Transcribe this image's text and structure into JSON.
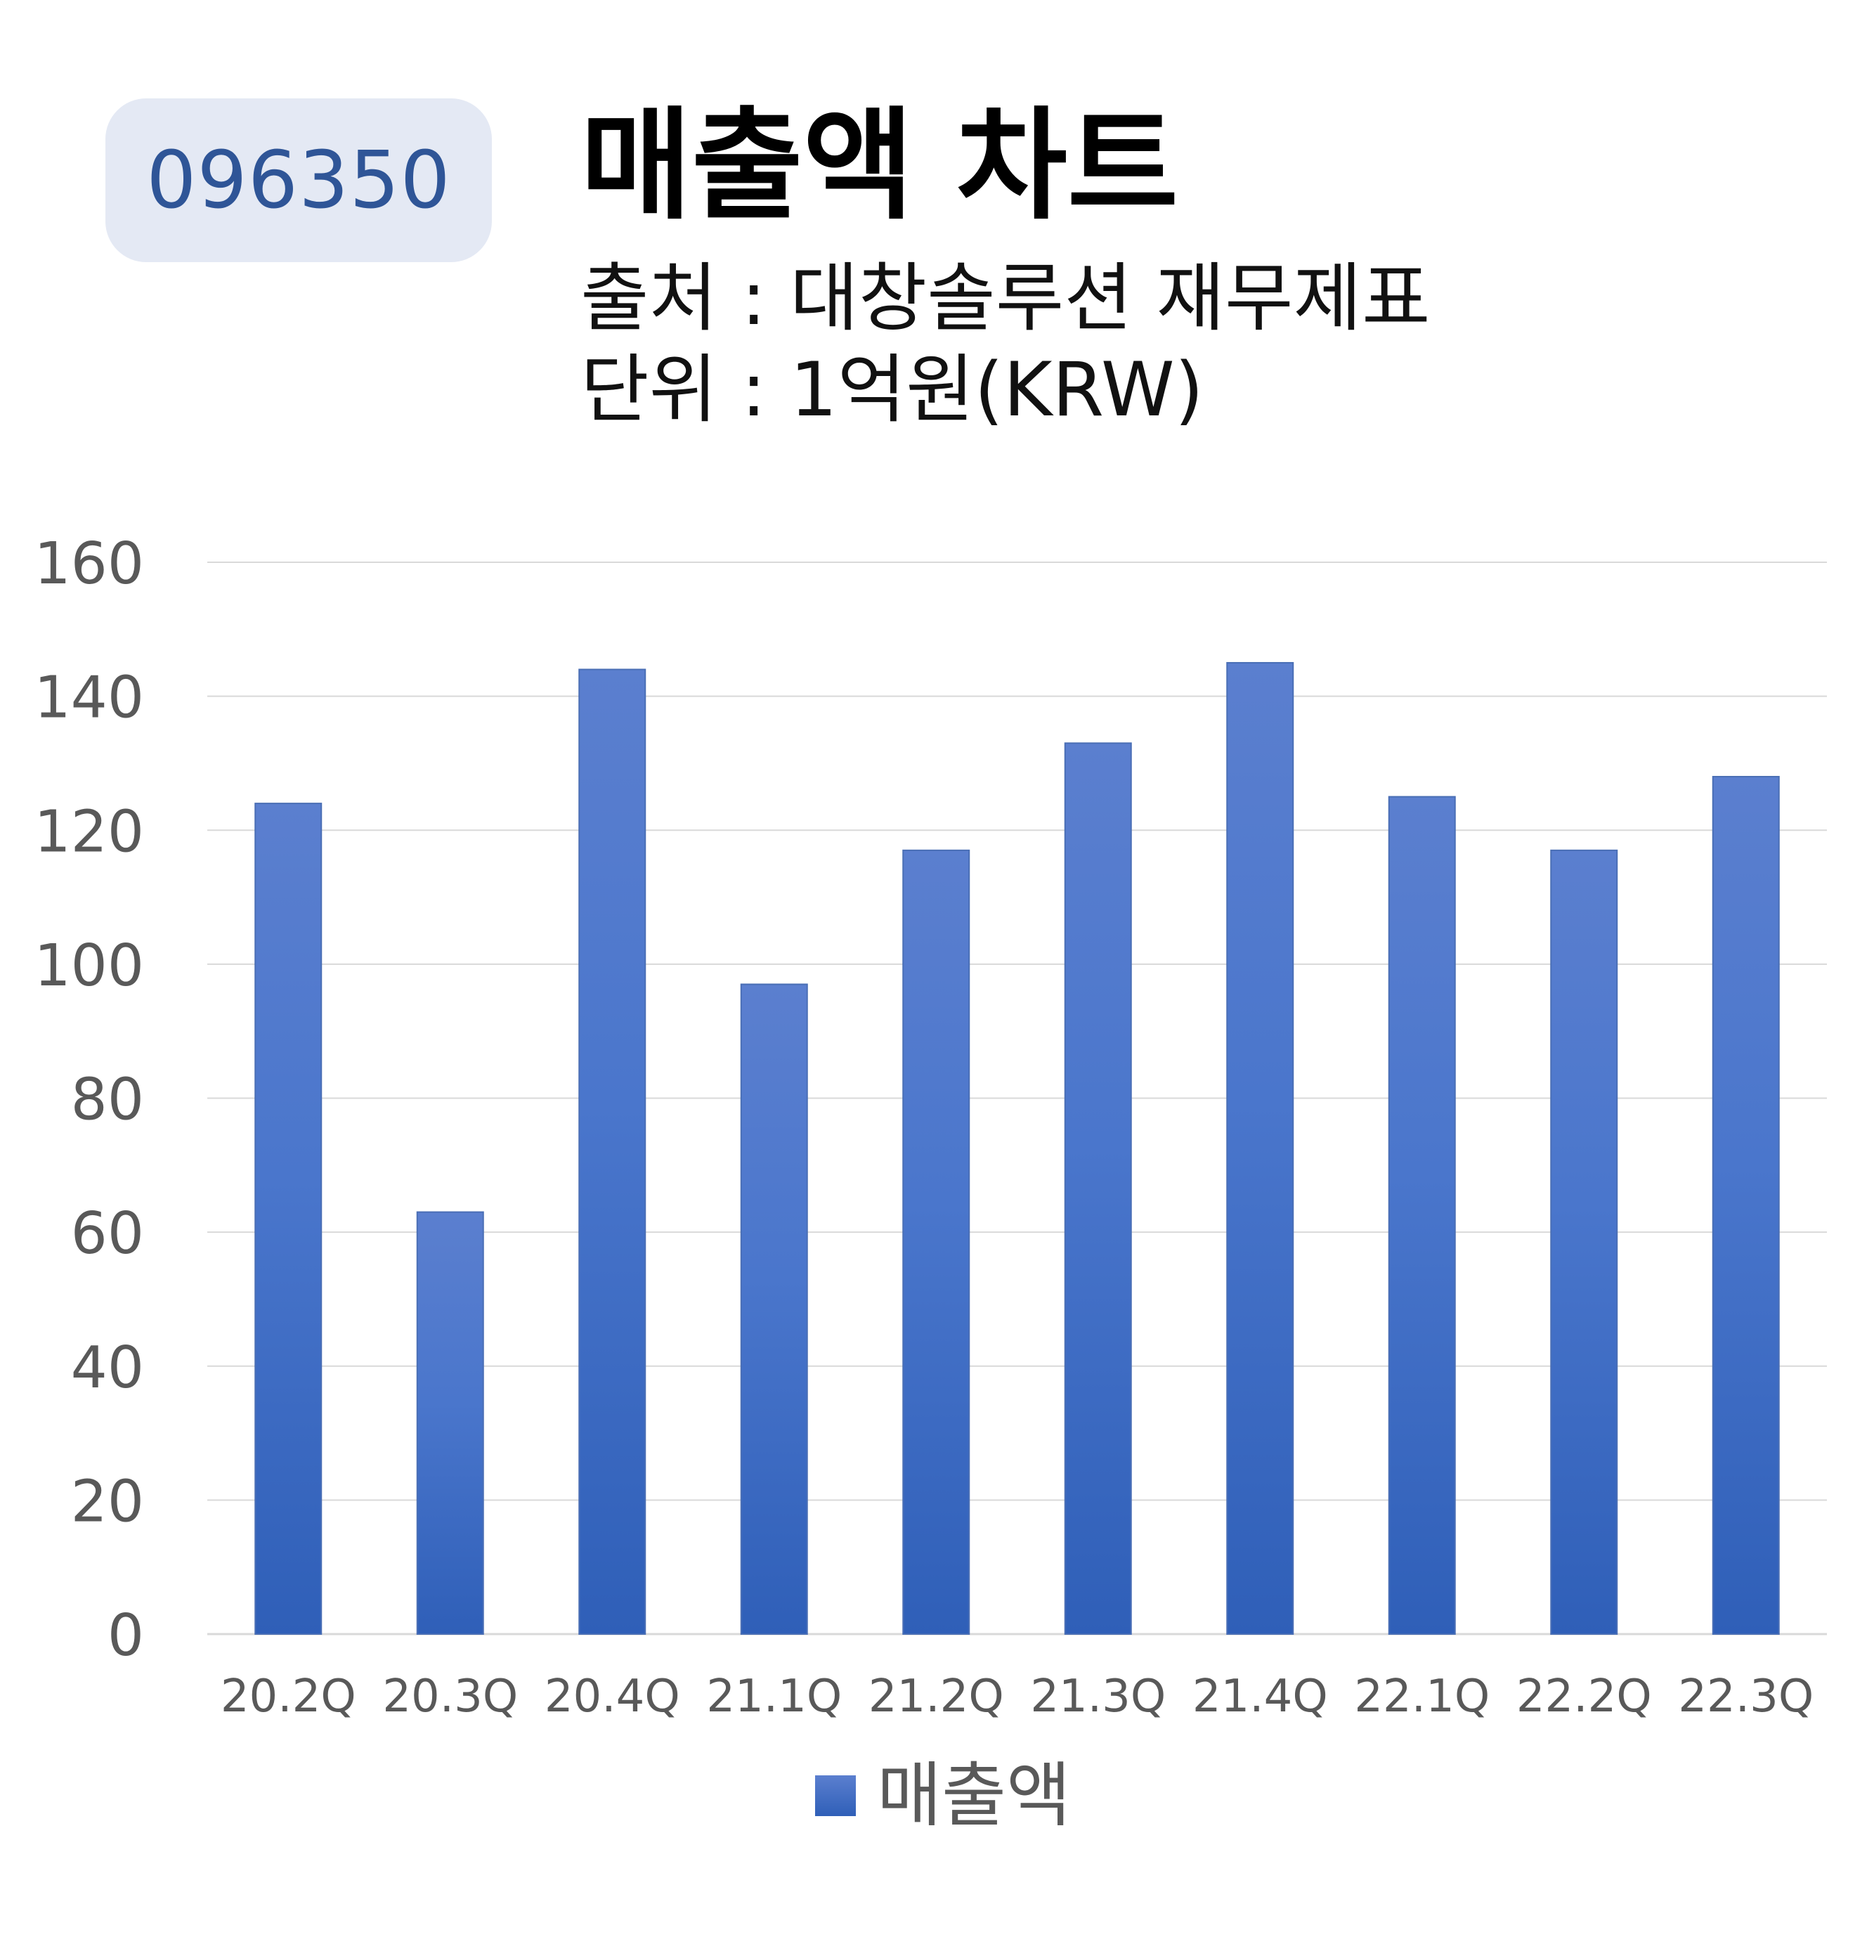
{
  "header": {
    "stock_code": "096350",
    "title": "매출액 차트",
    "source": "출처 : 대창솔루션 재무제표",
    "unit": "단위 : 1억원(KRW)"
  },
  "colors": {
    "bar_top": "#5b7fcf",
    "bar_bottom": "#2f5fb8",
    "badge_bg": "#e4e9f4",
    "badge_text": "#2f5597",
    "grid": "#d9d9d9",
    "axis_text": "#595959"
  },
  "chart_data": {
    "type": "bar",
    "categories": [
      "20.2Q",
      "20.3Q",
      "20.4Q",
      "21.1Q",
      "21.2Q",
      "21.3Q",
      "21.4Q",
      "22.1Q",
      "22.2Q",
      "22.3Q"
    ],
    "series": [
      {
        "name": "매출액",
        "values": [
          124,
          63,
          144,
          97,
          117,
          133,
          145,
          125,
          117,
          128
        ]
      }
    ],
    "ylim": [
      0,
      160
    ],
    "yticks": [
      0,
      20,
      40,
      60,
      80,
      100,
      120,
      140,
      160
    ],
    "grid": true,
    "legend": "bottom"
  }
}
